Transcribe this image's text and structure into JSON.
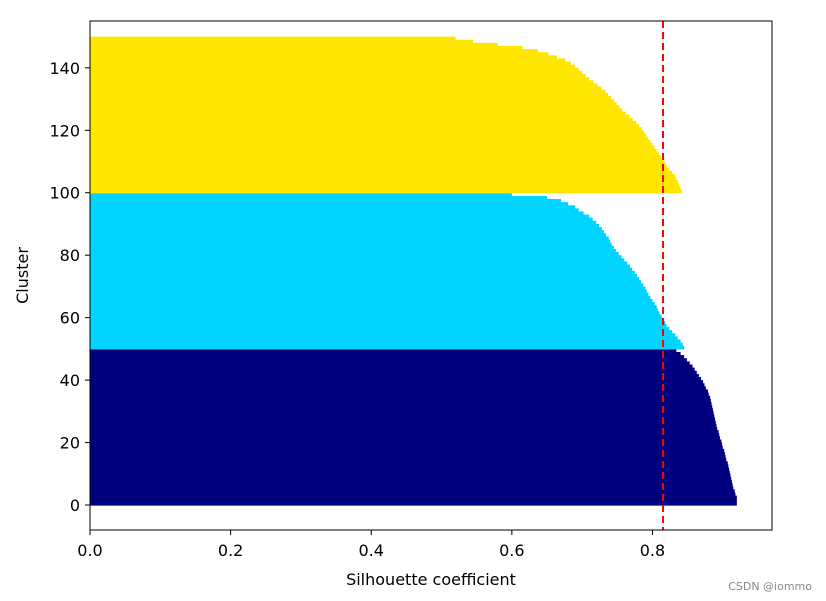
{
  "chart_data": {
    "type": "bar",
    "orientation": "horizontal",
    "title": "",
    "xlabel": "Silhouette coefficient",
    "ylabel": "Cluster",
    "xlim": [
      0.0,
      0.97
    ],
    "ylim": [
      -8,
      155
    ],
    "xticks": [
      0.0,
      0.2,
      0.4,
      0.6,
      0.8
    ],
    "xtick_labels": [
      "0.0",
      "0.2",
      "0.4",
      "0.6",
      "0.8"
    ],
    "yticks": [
      0,
      20,
      40,
      60,
      80,
      100,
      120,
      140
    ],
    "ytick_labels": [
      "0",
      "20",
      "40",
      "60",
      "80",
      "100",
      "120",
      "140"
    ],
    "grid": false,
    "legend": "none",
    "average_line": {
      "value": 0.815,
      "color": "#ff0000",
      "style": "dashed"
    },
    "series": [
      {
        "color": "#00007f",
        "y_range": [
          0,
          50
        ],
        "values": [
          0.92,
          0.92,
          0.92,
          0.918,
          0.917,
          0.915,
          0.914,
          0.913,
          0.912,
          0.911,
          0.91,
          0.909,
          0.908,
          0.907,
          0.905,
          0.904,
          0.903,
          0.902,
          0.9,
          0.899,
          0.898,
          0.896,
          0.895,
          0.894,
          0.892,
          0.891,
          0.89,
          0.889,
          0.888,
          0.887,
          0.886,
          0.885,
          0.884,
          0.883,
          0.882,
          0.88,
          0.879,
          0.876,
          0.874,
          0.872,
          0.869,
          0.866,
          0.863,
          0.86,
          0.857,
          0.853,
          0.849,
          0.845,
          0.84,
          0.834
        ]
      },
      {
        "color": "#00d4ff",
        "y_range": [
          50,
          100
        ],
        "values": [
          0.845,
          0.843,
          0.84,
          0.836,
          0.832,
          0.828,
          0.824,
          0.82,
          0.818,
          0.815,
          0.813,
          0.81,
          0.808,
          0.806,
          0.803,
          0.8,
          0.797,
          0.794,
          0.792,
          0.79,
          0.787,
          0.784,
          0.781,
          0.778,
          0.775,
          0.771,
          0.768,
          0.764,
          0.76,
          0.756,
          0.752,
          0.748,
          0.745,
          0.742,
          0.74,
          0.738,
          0.734,
          0.731,
          0.728,
          0.724,
          0.72,
          0.715,
          0.71,
          0.702,
          0.695,
          0.69,
          0.68,
          0.67,
          0.65,
          0.6
        ]
      },
      {
        "color": "#ffe600",
        "y_range": [
          100,
          150
        ],
        "values": [
          0.842,
          0.84,
          0.838,
          0.836,
          0.834,
          0.832,
          0.828,
          0.824,
          0.82,
          0.818,
          0.815,
          0.812,
          0.809,
          0.806,
          0.803,
          0.8,
          0.797,
          0.794,
          0.791,
          0.788,
          0.785,
          0.781,
          0.777,
          0.772,
          0.767,
          0.762,
          0.757,
          0.753,
          0.749,
          0.745,
          0.741,
          0.737,
          0.733,
          0.728,
          0.722,
          0.716,
          0.71,
          0.705,
          0.7,
          0.695,
          0.69,
          0.684,
          0.676,
          0.664,
          0.652,
          0.637,
          0.615,
          0.58,
          0.545,
          0.52
        ]
      }
    ]
  },
  "watermark": "CSDN @iommo"
}
